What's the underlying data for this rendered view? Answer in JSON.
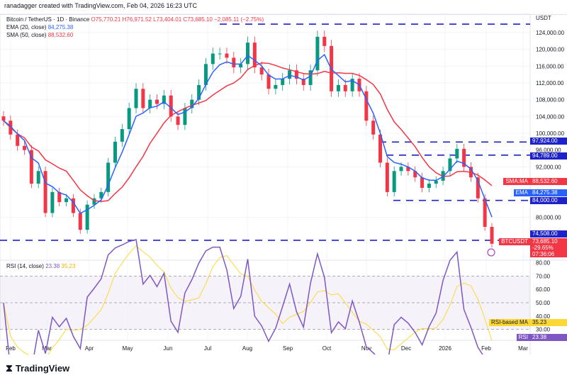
{
  "credit": "ranadagger created with TradingView.com, Feb 04, 2026 16:23 UTC",
  "legend": {
    "symbol": "Bitcoin / TetherUS · 1D · Binance",
    "o": "O75,770.21",
    "h": "H76,971.52",
    "l": "L73,404.01",
    "c": "C73,685.10",
    "chg": "−2,085.11 (−2.75%)",
    "ema": "EMA (20, close)",
    "ema_val": "84,275.38",
    "sma": "SMA (50, close)",
    "sma_val": "88,532.60",
    "rsi": "RSI (14, close)",
    "rsi_val": "23.38",
    "rsi_ma_val": "35.23"
  },
  "price_axis": {
    "currency": "USDT",
    "ticks": [
      "124,000.00",
      "120,000.00",
      "116,000.00",
      "112,000.00",
      "108,000.00",
      "104,000.00",
      "100,000.00",
      "96,000.00",
      "92,000.00",
      "80,000.00"
    ]
  },
  "rsi_axis": {
    "ticks": [
      "80.00",
      "70.00",
      "60.00",
      "50.00",
      "40.00",
      "30.00"
    ]
  },
  "x_axis": [
    "Feb",
    "Mar",
    "Apr",
    "May",
    "Jun",
    "Jul",
    "Aug",
    "Sep",
    "Oct",
    "Nov",
    "Dec",
    "2026",
    "Feb",
    "Mar"
  ],
  "tags": {
    "level1": "97,924.00",
    "level2": "94,789.00",
    "sma_label": "SMA:MA",
    "sma": "88,532.60",
    "ema_label": "EMA",
    "ema": "84,275.38",
    "level3": "84,000.00",
    "level4": "74,508.00",
    "sym": "BTCUSDT",
    "price": "73,685.10",
    "pct": "-29.65%",
    "timer": "07:36:06",
    "rsi_ma_label": "RSI-based MA",
    "rsi_ma": "35.23",
    "rsi_label": "RSI",
    "rsi": "23.38"
  },
  "logo": "TradingView",
  "colors": {
    "up": "#089981",
    "down": "#f23645",
    "ema": "#2962ff",
    "sma": "#f23645",
    "rsi": "#7e57c2",
    "rsi_ma": "#fdd835",
    "level": "#1e22c9"
  },
  "chart_data": {
    "type": "candlestick",
    "ylim": [
      70000,
      130000
    ],
    "levels": [
      126000,
      97924,
      94789,
      84000,
      74508
    ],
    "closes": [
      103000,
      99700,
      97000,
      96000,
      88000,
      91000,
      81000,
      86000,
      83600,
      84500,
      81000,
      77000,
      83000,
      84500,
      86000,
      93000,
      98000,
      101000,
      106000,
      110600,
      106000,
      108000,
      107000,
      109000,
      104000,
      102000,
      106000,
      108000,
      111500,
      116500,
      119000,
      119000,
      118000,
      115700,
      116500,
      121600,
      115700,
      114000,
      110600,
      111500,
      113000,
      115000,
      113000,
      111500,
      115000,
      123000,
      120800,
      110000,
      111500,
      110000,
      113000,
      110000,
      103000,
      99700,
      93000,
      86000,
      91000,
      92000,
      91000,
      89500,
      87000,
      88000,
      88700,
      91000,
      94000,
      96300,
      92000,
      89500,
      84500,
      77700,
      73685
    ]
  }
}
